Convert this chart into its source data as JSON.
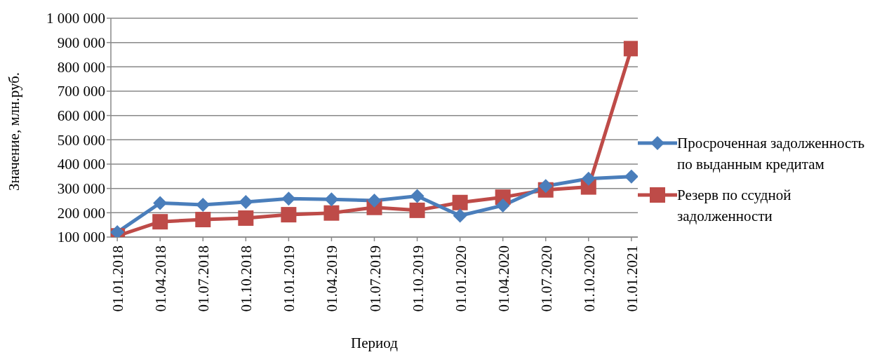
{
  "chart_data": {
    "type": "line",
    "xlabel": "Период",
    "ylabel": "Значение, млн.руб.",
    "categories": [
      "01.01.2018",
      "01.04.2018",
      "01.07.2018",
      "01.10.2018",
      "01.01.2019",
      "01.04.2019",
      "01.07.2019",
      "01.10.2019",
      "01.01.2020",
      "01.04.2020",
      "01.07.2020",
      "01.10.2020",
      "01.01.2021"
    ],
    "series": [
      {
        "name": "Просроченная задолженность по выданным кредитам",
        "color": "#4a7ebb",
        "marker": "diamond",
        "values": [
          120000,
          240000,
          233000,
          244000,
          258000,
          255000,
          250000,
          269000,
          188000,
          230000,
          310000,
          340000,
          349000
        ]
      },
      {
        "name": "Резерв по ссудной задолженности",
        "color": "#be4b48",
        "marker": "square",
        "values": [
          105000,
          163000,
          172000,
          178000,
          192000,
          199000,
          222000,
          210000,
          242000,
          264000,
          294000,
          306000,
          875000
        ]
      }
    ],
    "ylim": [
      100000,
      1000000
    ],
    "yticks": [
      {
        "value": 100000,
        "label": "100 000"
      },
      {
        "value": 200000,
        "label": "200 000"
      },
      {
        "value": 300000,
        "label": "300 000"
      },
      {
        "value": 400000,
        "label": "400 000"
      },
      {
        "value": 500000,
        "label": "500 000"
      },
      {
        "value": 600000,
        "label": "600 000"
      },
      {
        "value": 700000,
        "label": "700 000"
      },
      {
        "value": 800000,
        "label": "800 000"
      },
      {
        "value": 900000,
        "label": "900 000"
      },
      {
        "value": 1000000,
        "label": "1 000 000"
      }
    ],
    "grid": "y",
    "legend": "right",
    "line_style": "solid"
  }
}
